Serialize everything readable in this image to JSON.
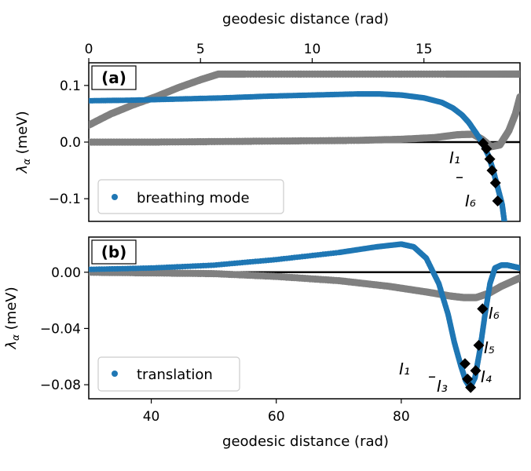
{
  "chart_data": [
    {
      "type": "scatter",
      "panel_label": "(a)",
      "xlabel": "geodesic distance (rad)",
      "ylabel": "λ_α (meV)",
      "xlim": [
        0,
        19.3
      ],
      "ylim": [
        -0.14,
        0.14
      ],
      "xticks": [
        0,
        5,
        10,
        15
      ],
      "xtick_labels": [
        "0",
        "5",
        "10",
        "15"
      ],
      "yticks": [
        -0.1,
        0.0,
        0.1
      ],
      "ytick_labels": [
        "−0.1",
        "0.0",
        "0.1"
      ],
      "legend": {
        "label": "breathing mode",
        "placement": "lower-left"
      },
      "series": [
        {
          "role": "gray-upper",
          "color": "#808080",
          "x": [
            0,
            1,
            2,
            3,
            4,
            5,
            5.8,
            7,
            10,
            13,
            16,
            17.5,
            18.5,
            19.3
          ],
          "y": [
            0.03,
            0.05,
            0.066,
            0.08,
            0.096,
            0.11,
            0.12,
            0.12,
            0.12,
            0.12,
            0.12,
            0.12,
            0.12,
            0.12
          ]
        },
        {
          "role": "gray-lower",
          "color": "#808080",
          "x": [
            0,
            3,
            6,
            9,
            12,
            14,
            15.5,
            16.5,
            17.2,
            17.6,
            18.0,
            18.4,
            18.8,
            19.1,
            19.3
          ],
          "y": [
            0.0,
            0.0,
            0.001,
            0.002,
            0.003,
            0.005,
            0.008,
            0.013,
            0.014,
            0.005,
            -0.008,
            -0.005,
            0.02,
            0.05,
            0.08
          ]
        },
        {
          "role": "blue",
          "name": "breathing mode",
          "color": "#1f77b4",
          "x": [
            0,
            2,
            4,
            6,
            8,
            10,
            12,
            13,
            14,
            15,
            15.8,
            16.3,
            16.7,
            17.0,
            17.3,
            17.6,
            17.9,
            18.1,
            18.3,
            18.5,
            18.6
          ],
          "y": [
            0.073,
            0.074,
            0.076,
            0.078,
            0.081,
            0.083,
            0.085,
            0.085,
            0.083,
            0.078,
            0.07,
            0.06,
            0.048,
            0.035,
            0.018,
            0.0,
            -0.025,
            -0.05,
            -0.08,
            -0.11,
            -0.14
          ]
        }
      ],
      "markers": {
        "label_first": "I₁",
        "label_last": "I₆",
        "dash": "–",
        "points": [
          [
            17.65,
            -0.002
          ],
          [
            17.8,
            -0.012
          ],
          [
            17.95,
            -0.03
          ],
          [
            18.05,
            -0.05
          ],
          [
            18.2,
            -0.072
          ],
          [
            18.3,
            -0.104
          ]
        ]
      }
    },
    {
      "type": "scatter",
      "panel_label": "(b)",
      "xlabel": "geodesic distance (rad)",
      "ylabel": "λ_α (meV)",
      "xlim": [
        30,
        99
      ],
      "ylim": [
        -0.09,
        0.025
      ],
      "xticks": [
        40,
        60,
        80
      ],
      "xtick_labels": [
        "40",
        "60",
        "80"
      ],
      "yticks": [
        -0.08,
        -0.04,
        0.0
      ],
      "ytick_labels": [
        "−0.08",
        "−0.04",
        "0.00"
      ],
      "legend": {
        "label": "translation",
        "placement": "lower-left"
      },
      "series": [
        {
          "role": "gray",
          "color": "#808080",
          "x": [
            30,
            40,
            50,
            60,
            70,
            78,
            84,
            88,
            90,
            92,
            94,
            96,
            98,
            99
          ],
          "y": [
            0.0,
            -0.0005,
            -0.001,
            -0.003,
            -0.006,
            -0.01,
            -0.014,
            -0.017,
            -0.018,
            -0.018,
            -0.015,
            -0.01,
            -0.006,
            -0.004
          ]
        },
        {
          "role": "blue",
          "name": "translation",
          "color": "#1f77b4",
          "x": [
            30,
            40,
            50,
            60,
            70,
            76,
            80,
            82,
            84,
            86,
            87.5,
            88.5,
            89.5,
            90.3,
            91,
            91.8,
            92.6,
            93.4,
            94.2,
            95,
            96,
            97,
            98,
            99
          ],
          "y": [
            0.002,
            0.003,
            0.005,
            0.009,
            0.014,
            0.018,
            0.02,
            0.018,
            0.01,
            -0.008,
            -0.03,
            -0.05,
            -0.066,
            -0.077,
            -0.082,
            -0.075,
            -0.055,
            -0.03,
            -0.008,
            0.003,
            0.005,
            0.005,
            0.004,
            0.003
          ]
        }
      ],
      "markers": {
        "labels": [
          "I₁",
          "I₃",
          "I₄",
          "I₅",
          "I₆"
        ],
        "dash": "–",
        "points": [
          [
            90.2,
            -0.065
          ],
          [
            90.6,
            -0.076
          ],
          [
            91.1,
            -0.082
          ],
          [
            91.9,
            -0.07
          ],
          [
            92.4,
            -0.052
          ],
          [
            93.0,
            -0.026
          ]
        ]
      }
    }
  ]
}
